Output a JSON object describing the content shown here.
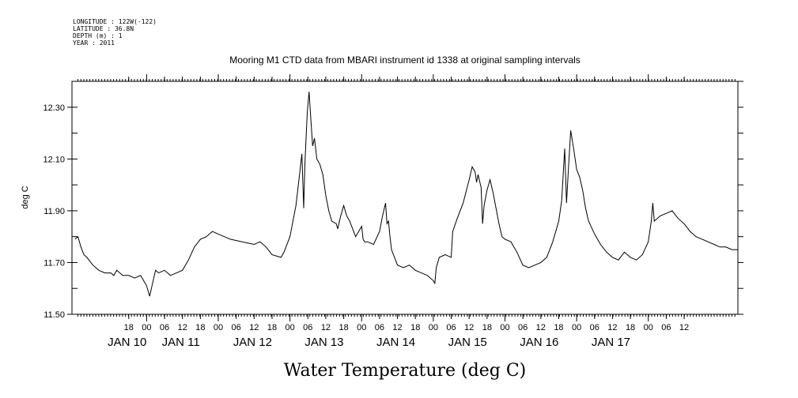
{
  "header": {
    "longitude": "LONGITUDE : 122W(-122)",
    "latitude": "LATITUDE : 36.8N",
    "depth": "DEPTH (m) : 1",
    "year": "YEAR : 2011"
  },
  "chart_data": {
    "type": "line",
    "title": "Mooring M1 CTD data from MBARI instrument id 1338 at original sampling intervals",
    "xlabel": "Water Temperature (deg C)",
    "ylabel": "deg C",
    "ylim": [
      11.5,
      12.4
    ],
    "xlim_hours": [
      0,
      180
    ],
    "y_ticks": [
      "11.50",
      "11.70",
      "11.90",
      "12.10",
      "12.30"
    ],
    "x_hour_ticks": [
      {
        "h": 6,
        "label": "18"
      },
      {
        "h": 12,
        "label": "00"
      },
      {
        "h": 18,
        "label": "06"
      },
      {
        "h": 24,
        "label": "12"
      },
      {
        "h": 30,
        "label": "18"
      },
      {
        "h": 36,
        "label": "00"
      },
      {
        "h": 42,
        "label": "06"
      },
      {
        "h": 48,
        "label": "12"
      },
      {
        "h": 54,
        "label": "18"
      },
      {
        "h": 60,
        "label": "00"
      },
      {
        "h": 66,
        "label": "06"
      },
      {
        "h": 72,
        "label": "12"
      },
      {
        "h": 78,
        "label": "18"
      },
      {
        "h": 84,
        "label": "00"
      },
      {
        "h": 90,
        "label": "06"
      },
      {
        "h": 96,
        "label": "12"
      },
      {
        "h": 102,
        "label": "18"
      },
      {
        "h": 108,
        "label": "00"
      },
      {
        "h": 114,
        "label": "06"
      },
      {
        "h": 120,
        "label": "12"
      },
      {
        "h": 126,
        "label": "18"
      },
      {
        "h": 132,
        "label": "00"
      },
      {
        "h": 138,
        "label": "06"
      },
      {
        "h": 144,
        "label": "12"
      },
      {
        "h": 150,
        "label": "18"
      },
      {
        "h": 156,
        "label": "00"
      },
      {
        "h": 162,
        "label": "06"
      },
      {
        "h": 168,
        "label": "12"
      },
      {
        "h": 174,
        "label": "18"
      },
      {
        "h": 180,
        "label": "00"
      },
      {
        "h": 186,
        "label": "06"
      },
      {
        "h": 192,
        "label": "12"
      }
    ],
    "x_day_labels": [
      {
        "h": 6,
        "label": "JAN 10"
      },
      {
        "h": 24,
        "label": "JAN 11"
      },
      {
        "h": 48,
        "label": "JAN 12"
      },
      {
        "h": 72,
        "label": "JAN 13"
      },
      {
        "h": 96,
        "label": "JAN 14"
      },
      {
        "h": 120,
        "label": "JAN 15"
      },
      {
        "h": 144,
        "label": "JAN 16"
      },
      {
        "h": 168,
        "label": "JAN 17"
      }
    ],
    "series": [
      {
        "color": "#000000",
        "points": [
          [
            0,
            11.79
          ],
          [
            1,
            11.8
          ],
          [
            2,
            11.76
          ],
          [
            3,
            11.73
          ],
          [
            4,
            11.72
          ],
          [
            6,
            11.69
          ],
          [
            8,
            11.67
          ],
          [
            10,
            11.66
          ],
          [
            12,
            11.66
          ],
          [
            13,
            11.65
          ],
          [
            14,
            11.67
          ],
          [
            16,
            11.65
          ],
          [
            18,
            11.65
          ],
          [
            20,
            11.64
          ],
          [
            22,
            11.65
          ],
          [
            23,
            11.63
          ],
          [
            24,
            11.61
          ],
          [
            25,
            11.57
          ],
          [
            26,
            11.62
          ],
          [
            27,
            11.67
          ],
          [
            28,
            11.66
          ],
          [
            30,
            11.67
          ],
          [
            32,
            11.65
          ],
          [
            34,
            11.66
          ],
          [
            36,
            11.67
          ],
          [
            38,
            11.71
          ],
          [
            40,
            11.76
          ],
          [
            42,
            11.79
          ],
          [
            44,
            11.8
          ],
          [
            46,
            11.82
          ],
          [
            48,
            11.81
          ],
          [
            50,
            11.8
          ],
          [
            52,
            11.79
          ],
          [
            56,
            11.78
          ],
          [
            60,
            11.77
          ],
          [
            62,
            11.78
          ],
          [
            64,
            11.76
          ],
          [
            66,
            11.73
          ],
          [
            69,
            11.72
          ],
          [
            70,
            11.74
          ],
          [
            72,
            11.8
          ],
          [
            74,
            11.92
          ],
          [
            75,
            12.02
          ],
          [
            76,
            12.12
          ],
          [
            76.6,
            11.91
          ],
          [
            77,
            12.08
          ],
          [
            77.8,
            12.28
          ],
          [
            78.4,
            12.36
          ],
          [
            79,
            12.25
          ],
          [
            79.6,
            12.15
          ],
          [
            80.2,
            12.18
          ],
          [
            81,
            12.1
          ],
          [
            82,
            12.08
          ],
          [
            83,
            12.04
          ],
          [
            84,
            11.96
          ],
          [
            85,
            11.9
          ],
          [
            86,
            11.86
          ],
          [
            87.5,
            11.85
          ],
          [
            88,
            11.83
          ],
          [
            89,
            11.88
          ],
          [
            90,
            11.92
          ],
          [
            91,
            11.88
          ],
          [
            92,
            11.86
          ],
          [
            93,
            11.83
          ],
          [
            94,
            11.8
          ],
          [
            95,
            11.82
          ],
          [
            96,
            11.84
          ],
          [
            96.5,
            11.79
          ],
          [
            97,
            11.78
          ],
          [
            98,
            11.78
          ],
          [
            100,
            11.77
          ],
          [
            102,
            11.82
          ],
          [
            103,
            11.88
          ],
          [
            104,
            11.93
          ],
          [
            104.5,
            11.85
          ],
          [
            105,
            11.86
          ],
          [
            105.5,
            11.8
          ],
          [
            106,
            11.75
          ],
          [
            107,
            11.72
          ],
          [
            108,
            11.69
          ],
          [
            110,
            11.68
          ],
          [
            112,
            11.69
          ],
          [
            114,
            11.67
          ],
          [
            116,
            11.66
          ],
          [
            118,
            11.65
          ],
          [
            119,
            11.64
          ],
          [
            120,
            11.63
          ],
          [
            120.5,
            11.62
          ],
          [
            121,
            11.68
          ],
          [
            122,
            11.72
          ],
          [
            124,
            11.73
          ],
          [
            126,
            11.72
          ],
          [
            126.5,
            11.82
          ],
          [
            128,
            11.87
          ],
          [
            130,
            11.93
          ],
          [
            132,
            12.02
          ],
          [
            133,
            12.07
          ],
          [
            134,
            12.05
          ],
          [
            134.5,
            12.01
          ],
          [
            135,
            12.04
          ],
          [
            136,
            11.99
          ],
          [
            136.5,
            11.85
          ],
          [
            137,
            11.92
          ],
          [
            138,
            11.98
          ],
          [
            139,
            12.02
          ],
          [
            140,
            11.97
          ],
          [
            141,
            11.91
          ],
          [
            142,
            11.85
          ],
          [
            143,
            11.8
          ],
          [
            144,
            11.79
          ],
          [
            146,
            11.78
          ],
          [
            148,
            11.74
          ],
          [
            150,
            11.69
          ],
          [
            152,
            11.68
          ],
          [
            156,
            11.7
          ],
          [
            158,
            11.72
          ],
          [
            160,
            11.78
          ],
          [
            162,
            11.86
          ],
          [
            163,
            11.94
          ],
          [
            164,
            12.14
          ],
          [
            164.6,
            11.93
          ],
          [
            165.2,
            12.05
          ],
          [
            166,
            12.21
          ],
          [
            167,
            12.14
          ],
          [
            168,
            12.06
          ],
          [
            169,
            12.03
          ],
          [
            170,
            11.98
          ],
          [
            171,
            11.91
          ],
          [
            172,
            11.86
          ],
          [
            174,
            11.81
          ],
          [
            176,
            11.77
          ],
          [
            178,
            11.74
          ],
          [
            180,
            11.72
          ],
          [
            182,
            11.71
          ],
          [
            184,
            11.74
          ],
          [
            186,
            11.72
          ],
          [
            188,
            11.71
          ],
          [
            190,
            11.73
          ],
          [
            192,
            11.78
          ],
          [
            193,
            11.86
          ],
          [
            193.5,
            11.93
          ],
          [
            194,
            11.86
          ],
          [
            196,
            11.88
          ],
          [
            198,
            11.89
          ],
          [
            200,
            11.9
          ],
          [
            202,
            11.87
          ],
          [
            204,
            11.85
          ],
          [
            206,
            11.82
          ],
          [
            208,
            11.8
          ],
          [
            210,
            11.79
          ],
          [
            212,
            11.78
          ],
          [
            214,
            11.77
          ],
          [
            216,
            11.76
          ],
          [
            218,
            11.76
          ],
          [
            220,
            11.75
          ],
          [
            222,
            11.75
          ]
        ]
      }
    ]
  }
}
